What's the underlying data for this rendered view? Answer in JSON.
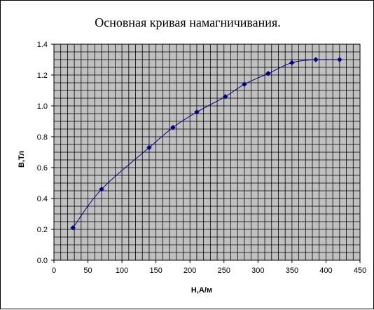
{
  "chart_data": {
    "type": "scatter",
    "title": "Основная кривая намагничивания.",
    "xlabel": "H,А/м",
    "ylabel": "B,Тл",
    "xlim": [
      0,
      450
    ],
    "ylim": [
      0,
      1.4
    ],
    "x_major_ticks": [
      "0",
      "50",
      "100",
      "150",
      "200",
      "250",
      "300",
      "350",
      "400",
      "450"
    ],
    "y_major_ticks": [
      "0.0",
      "0.2",
      "0.4",
      "0.6",
      "0.8",
      "1.0",
      "1.2",
      "1.4"
    ],
    "grid": true,
    "x_minor_step": 10,
    "y_minor_step": 0.05,
    "plot_background": "#c0c0c0",
    "series": [
      {
        "color": "#000080",
        "marker": "diamond",
        "line": "smooth",
        "x": [
          28,
          70,
          140,
          175,
          210,
          252,
          280,
          315,
          350,
          385,
          420
        ],
        "y": [
          0.21,
          0.46,
          0.73,
          0.86,
          0.96,
          1.06,
          1.14,
          1.21,
          1.28,
          1.3,
          1.3
        ]
      }
    ]
  }
}
